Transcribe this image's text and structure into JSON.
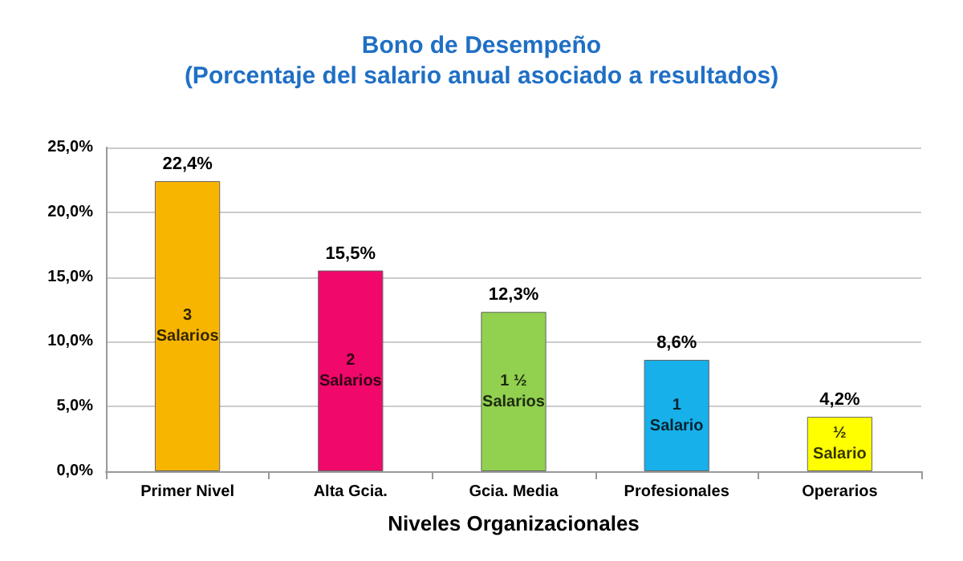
{
  "chart_data": {
    "type": "bar",
    "title": "Bono de Desempeño",
    "subtitle": "(Porcentaje del salario anual asociado a resultados)",
    "xlabel": "Niveles Organizacionales",
    "categories": [
      "Primer Nivel",
      "Alta Gcia.",
      "Gcia. Media",
      "Profesionales",
      "Operarios"
    ],
    "values": [
      22.4,
      15.5,
      12.3,
      8.6,
      4.2
    ],
    "colors": [
      "#f7b500",
      "#f0086a",
      "#92d050",
      "#17b0ea",
      "#ffff00"
    ],
    "value_labels": [
      "22,4%",
      "15,5%",
      "12,3%",
      "8,6%",
      "4,2%"
    ],
    "annotations": [
      "3\nSalarios",
      "2\nSalarios",
      "1 ½\nSalarios",
      "1\nSalario",
      "½\nSalario"
    ],
    "ylim": [
      0,
      25
    ],
    "yticks": [
      {
        "value": 0,
        "label": "0,0%"
      },
      {
        "value": 5,
        "label": "5,0%"
      },
      {
        "value": 10,
        "label": "10,0%"
      },
      {
        "value": 15,
        "label": "15,0%"
      },
      {
        "value": 20,
        "label": "20,0%"
      },
      {
        "value": 25,
        "label": "25,0%"
      }
    ],
    "grid": "y"
  }
}
